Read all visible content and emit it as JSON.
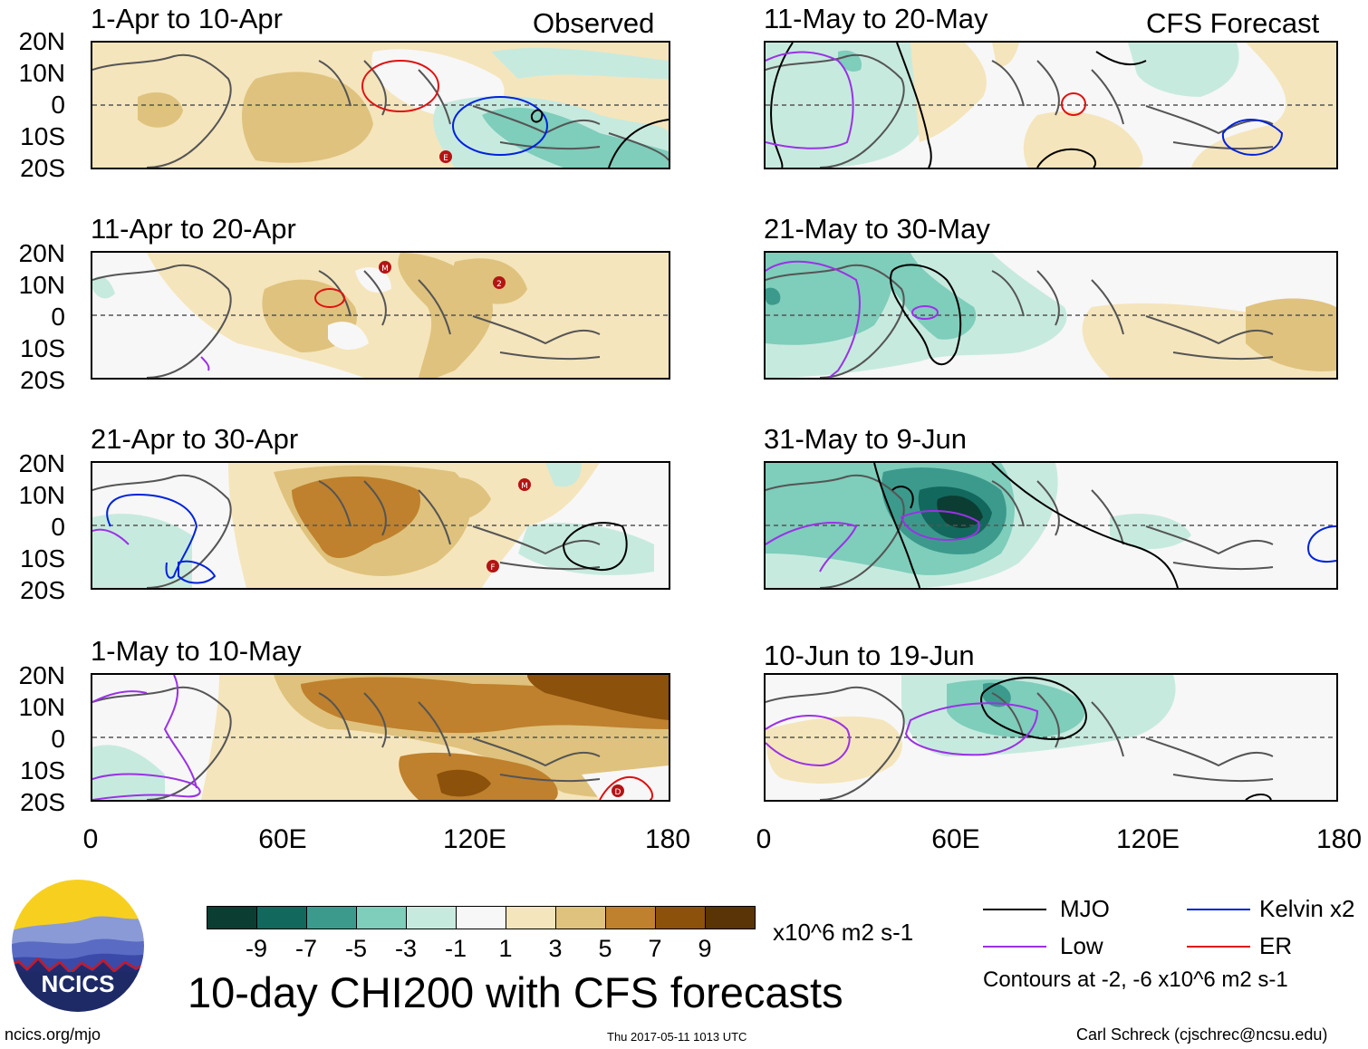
{
  "colors": {
    "mjo": "#000000",
    "kelvin": "#0022dd",
    "low": "#9a32e6",
    "er": "#e01010",
    "cyclone": "#b31414"
  },
  "columns": {
    "left_label": "Observed",
    "right_label": "CFS Forecast"
  },
  "panels_left": [
    {
      "title": "1-Apr to 10-Apr"
    },
    {
      "title": "11-Apr to 20-Apr"
    },
    {
      "title": "21-Apr to 30-Apr"
    },
    {
      "title": "1-May to 10-May"
    }
  ],
  "panels_right": [
    {
      "title": "11-May to 20-May"
    },
    {
      "title": "21-May to 30-May"
    },
    {
      "title": "31-May to 9-Jun"
    },
    {
      "title": "10-Jun to 19-Jun"
    }
  ],
  "lat_labels": [
    "20N",
    "10N",
    "0",
    "10S",
    "20S"
  ],
  "lon_labels": [
    "0",
    "60E",
    "120E",
    "180"
  ],
  "cyclone_markers": [
    "E",
    "M",
    "2",
    "M",
    "F",
    "D"
  ],
  "colorbar": {
    "tick_labels": [
      "-9",
      "-7",
      "-5",
      "-3",
      "-1",
      "1",
      "3",
      "5",
      "7",
      "9"
    ],
    "unit": "x10^6 m2 s-1",
    "colors": [
      "#0b3d33",
      "#12685c",
      "#3c9a8c",
      "#7fcdbb",
      "#c7eadf",
      "#f7f7f7",
      "#f5e5bc",
      "#dfc27d",
      "#bf812d",
      "#8c510a",
      "#5a3407"
    ]
  },
  "legend": {
    "items": [
      {
        "label": "MJO",
        "key": "mjo"
      },
      {
        "label": "Kelvin x2",
        "key": "kelvin"
      },
      {
        "label": "Low",
        "key": "low"
      },
      {
        "label": "ER",
        "key": "er"
      }
    ],
    "note": "Contours at -2, -6 x10^6 m2 s-1"
  },
  "logo_text": "NCICS",
  "main_title": "10-day CHI200 with CFS forecasts",
  "footer": {
    "website": "ncics.org/mjo",
    "timestamp": "Thu 2017-05-11 1013 UTC",
    "author": "Carl Schreck (cjschrec@ncsu.edu)"
  }
}
